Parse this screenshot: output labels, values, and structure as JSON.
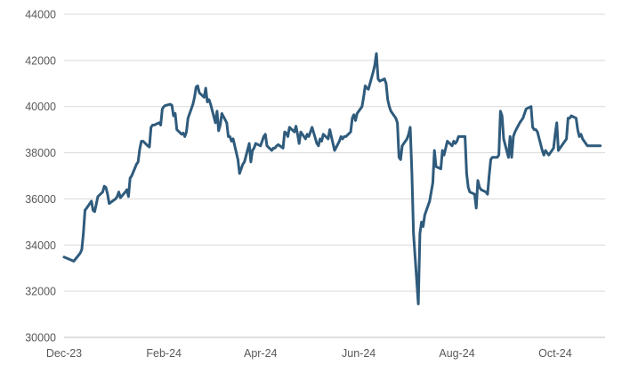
{
  "chart_data": {
    "type": "line",
    "title": "",
    "xlabel": "",
    "ylabel": "",
    "ylim": [
      30000,
      44000
    ],
    "yticks": [
      30000,
      32000,
      34000,
      36000,
      38000,
      40000,
      42000,
      44000
    ],
    "ytick_labels": [
      "30000",
      "32000",
      "34000",
      "36000",
      "38000",
      "40000",
      "42000",
      "44000"
    ],
    "xlim": [
      "2023-12-01",
      "2024-11-01"
    ],
    "xticks": [
      "2023-12-01",
      "2024-02-01",
      "2024-04-01",
      "2024-06-01",
      "2024-08-01",
      "2024-10-01"
    ],
    "xtick_labels": [
      "Dec-23",
      "Feb-24",
      "Apr-24",
      "Jun-24",
      "Aug-24",
      "Oct-24"
    ],
    "grid": true,
    "legend": "none",
    "series": [
      {
        "color": "#2f5b7c",
        "x": [
          "2023-12-01",
          "2023-12-07",
          "2023-12-11",
          "2023-12-12",
          "2023-12-13",
          "2023-12-14",
          "2023-12-18",
          "2023-12-19",
          "2023-12-20",
          "2023-12-22",
          "2023-12-25",
          "2023-12-26",
          "2023-12-27",
          "2023-12-28",
          "2023-12-29",
          "2024-01-01",
          "2024-01-02",
          "2024-01-03",
          "2024-01-04",
          "2024-01-05",
          "2024-01-08",
          "2024-01-09",
          "2024-01-10",
          "2024-01-11",
          "2024-01-12",
          "2024-01-15",
          "2024-01-16",
          "2024-01-17",
          "2024-01-18",
          "2024-01-19",
          "2024-01-22",
          "2024-01-23",
          "2024-01-24",
          "2024-01-25",
          "2024-01-26",
          "2024-01-29",
          "2024-01-30",
          "2024-01-31",
          "2024-02-01",
          "2024-02-02",
          "2024-02-05",
          "2024-02-06",
          "2024-02-07",
          "2024-02-08",
          "2024-02-09",
          "2024-02-12",
          "2024-02-13",
          "2024-02-14",
          "2024-02-15",
          "2024-02-16",
          "2024-02-19",
          "2024-02-20",
          "2024-02-21",
          "2024-02-22",
          "2024-02-23",
          "2024-02-26",
          "2024-02-27",
          "2024-02-28",
          "2024-02-29",
          "2024-03-01",
          "2024-03-04",
          "2024-03-05",
          "2024-03-06",
          "2024-03-07",
          "2024-03-08",
          "2024-03-11",
          "2024-03-12",
          "2024-03-13",
          "2024-03-14",
          "2024-03-15",
          "2024-03-18",
          "2024-03-19",
          "2024-03-20",
          "2024-03-21",
          "2024-03-22",
          "2024-03-25",
          "2024-03-26",
          "2024-03-27",
          "2024-03-28",
          "2024-03-29",
          "2024-04-01",
          "2024-04-02",
          "2024-04-03",
          "2024-04-04",
          "2024-04-05",
          "2024-04-08",
          "2024-04-09",
          "2024-04-10",
          "2024-04-11",
          "2024-04-12",
          "2024-04-15",
          "2024-04-16",
          "2024-04-17",
          "2024-04-18",
          "2024-04-19",
          "2024-04-22",
          "2024-04-23",
          "2024-04-24",
          "2024-04-25",
          "2024-04-26",
          "2024-04-29",
          "2024-04-30",
          "2024-05-01",
          "2024-05-02",
          "2024-05-03",
          "2024-05-06",
          "2024-05-07",
          "2024-05-08",
          "2024-05-09",
          "2024-05-10",
          "2024-05-13",
          "2024-05-14",
          "2024-05-15",
          "2024-05-16",
          "2024-05-17",
          "2024-05-20",
          "2024-05-21",
          "2024-05-22",
          "2024-05-23",
          "2024-05-24",
          "2024-05-27",
          "2024-05-28",
          "2024-05-29",
          "2024-05-30",
          "2024-05-31",
          "2024-06-03",
          "2024-06-04",
          "2024-06-05",
          "2024-06-06",
          "2024-06-07",
          "2024-06-10",
          "2024-06-11",
          "2024-06-12",
          "2024-06-13",
          "2024-06-14",
          "2024-06-17",
          "2024-06-18",
          "2024-06-19",
          "2024-06-20",
          "2024-06-21",
          "2024-06-24",
          "2024-06-25",
          "2024-06-26",
          "2024-06-27",
          "2024-06-28",
          "2024-07-01",
          "2024-07-02",
          "2024-07-03",
          "2024-07-04",
          "2024-07-05",
          "2024-07-08",
          "2024-07-09",
          "2024-07-10",
          "2024-07-11",
          "2024-07-12",
          "2024-07-15",
          "2024-07-16",
          "2024-07-17",
          "2024-07-18",
          "2024-07-19",
          "2024-07-22",
          "2024-07-23",
          "2024-07-24",
          "2024-07-25",
          "2024-07-26",
          "2024-07-29",
          "2024-07-30",
          "2024-07-31",
          "2024-08-01",
          "2024-08-02",
          "2024-08-05",
          "2024-08-06",
          "2024-08-07",
          "2024-08-08",
          "2024-08-09",
          "2024-08-12",
          "2024-08-13",
          "2024-08-14",
          "2024-08-15",
          "2024-08-16",
          "2024-08-19",
          "2024-08-20",
          "2024-08-21",
          "2024-08-22",
          "2024-08-23",
          "2024-08-26",
          "2024-08-27",
          "2024-08-28",
          "2024-08-29",
          "2024-08-30",
          "2024-09-02",
          "2024-09-03",
          "2024-09-04",
          "2024-09-05",
          "2024-09-06",
          "2024-09-09",
          "2024-09-10",
          "2024-09-11",
          "2024-09-12",
          "2024-09-13",
          "2024-09-16",
          "2024-09-17",
          "2024-09-18",
          "2024-09-19",
          "2024-09-20",
          "2024-09-23",
          "2024-09-24",
          "2024-09-25",
          "2024-09-26",
          "2024-09-27",
          "2024-09-30",
          "2024-10-01",
          "2024-10-02",
          "2024-10-03",
          "2024-10-04",
          "2024-10-07",
          "2024-10-08",
          "2024-10-09",
          "2024-10-10",
          "2024-10-11",
          "2024-10-14",
          "2024-10-15",
          "2024-10-16",
          "2024-10-17",
          "2024-10-18",
          "2024-10-21",
          "2024-10-22",
          "2024-10-23",
          "2024-10-24",
          "2024-10-25",
          "2024-10-28",
          "2024-10-29"
        ],
        "values": [
          33480,
          33300,
          33650,
          33800,
          34500,
          35500,
          35900,
          35500,
          35450,
          36100,
          36300,
          36550,
          36500,
          36200,
          35800,
          35950,
          36000,
          36100,
          36300,
          36050,
          36300,
          36400,
          36100,
          36900,
          37000,
          37500,
          37600,
          38150,
          38500,
          38500,
          38300,
          38250,
          39100,
          39200,
          39200,
          39300,
          39200,
          39900,
          40000,
          40050,
          40100,
          40050,
          39600,
          39700,
          39000,
          38800,
          38850,
          38700,
          38900,
          39500,
          40100,
          40400,
          40850,
          40900,
          40600,
          40400,
          40800,
          40200,
          40300,
          40100,
          39300,
          39800,
          38950,
          39200,
          39700,
          39300,
          38700,
          38700,
          38500,
          38600,
          37700,
          37100,
          37300,
          37500,
          37600,
          38400,
          37600,
          38100,
          38200,
          38400,
          38300,
          38500,
          38700,
          38800,
          38300,
          38100,
          38200,
          38200,
          38300,
          38350,
          38200,
          38900,
          38850,
          38700,
          39100,
          38900,
          39150,
          38800,
          38400,
          38900,
          38600,
          38800,
          38700,
          38900,
          39100,
          38400,
          38300,
          38600,
          38500,
          38800,
          38600,
          39000,
          38700,
          38400,
          38100,
          38500,
          38700,
          38600,
          38700,
          38700,
          38900,
          39500,
          39650,
          39400,
          39700,
          40000,
          40400,
          40900,
          40800,
          40750,
          41500,
          41800,
          42300,
          41200,
          41100,
          41200,
          41000,
          40300,
          40000,
          39800,
          39500,
          39300,
          37800,
          37700,
          38300,
          38600,
          38800,
          39100,
          37100,
          34500,
          31450,
          34500,
          35000,
          34800,
          35300,
          35900,
          36300,
          36700,
          38100,
          37400,
          37300,
          38100,
          37900,
          38200,
          38500,
          38300,
          38500,
          38400,
          38500,
          38700,
          38700,
          38700,
          37100,
          36500,
          36300,
          36200,
          35600,
          36800,
          36500,
          36400,
          36300,
          36200,
          37000,
          37700,
          37800,
          37800,
          37900,
          39800,
          39600,
          38600,
          37800,
          38700,
          37800,
          38700,
          38900,
          39300,
          39400,
          39500,
          39700,
          39900,
          40000,
          39100,
          39000,
          39000,
          38900,
          38100,
          37900,
          38100,
          38000,
          37900,
          38200,
          38800,
          39300,
          38100,
          38200,
          38500,
          38600,
          39500,
          39500,
          39600,
          39500,
          39000,
          38700,
          38800,
          38600,
          38300,
          38300,
          38300,
          38300,
          38300,
          38300,
          38300
        ]
      }
    ]
  }
}
